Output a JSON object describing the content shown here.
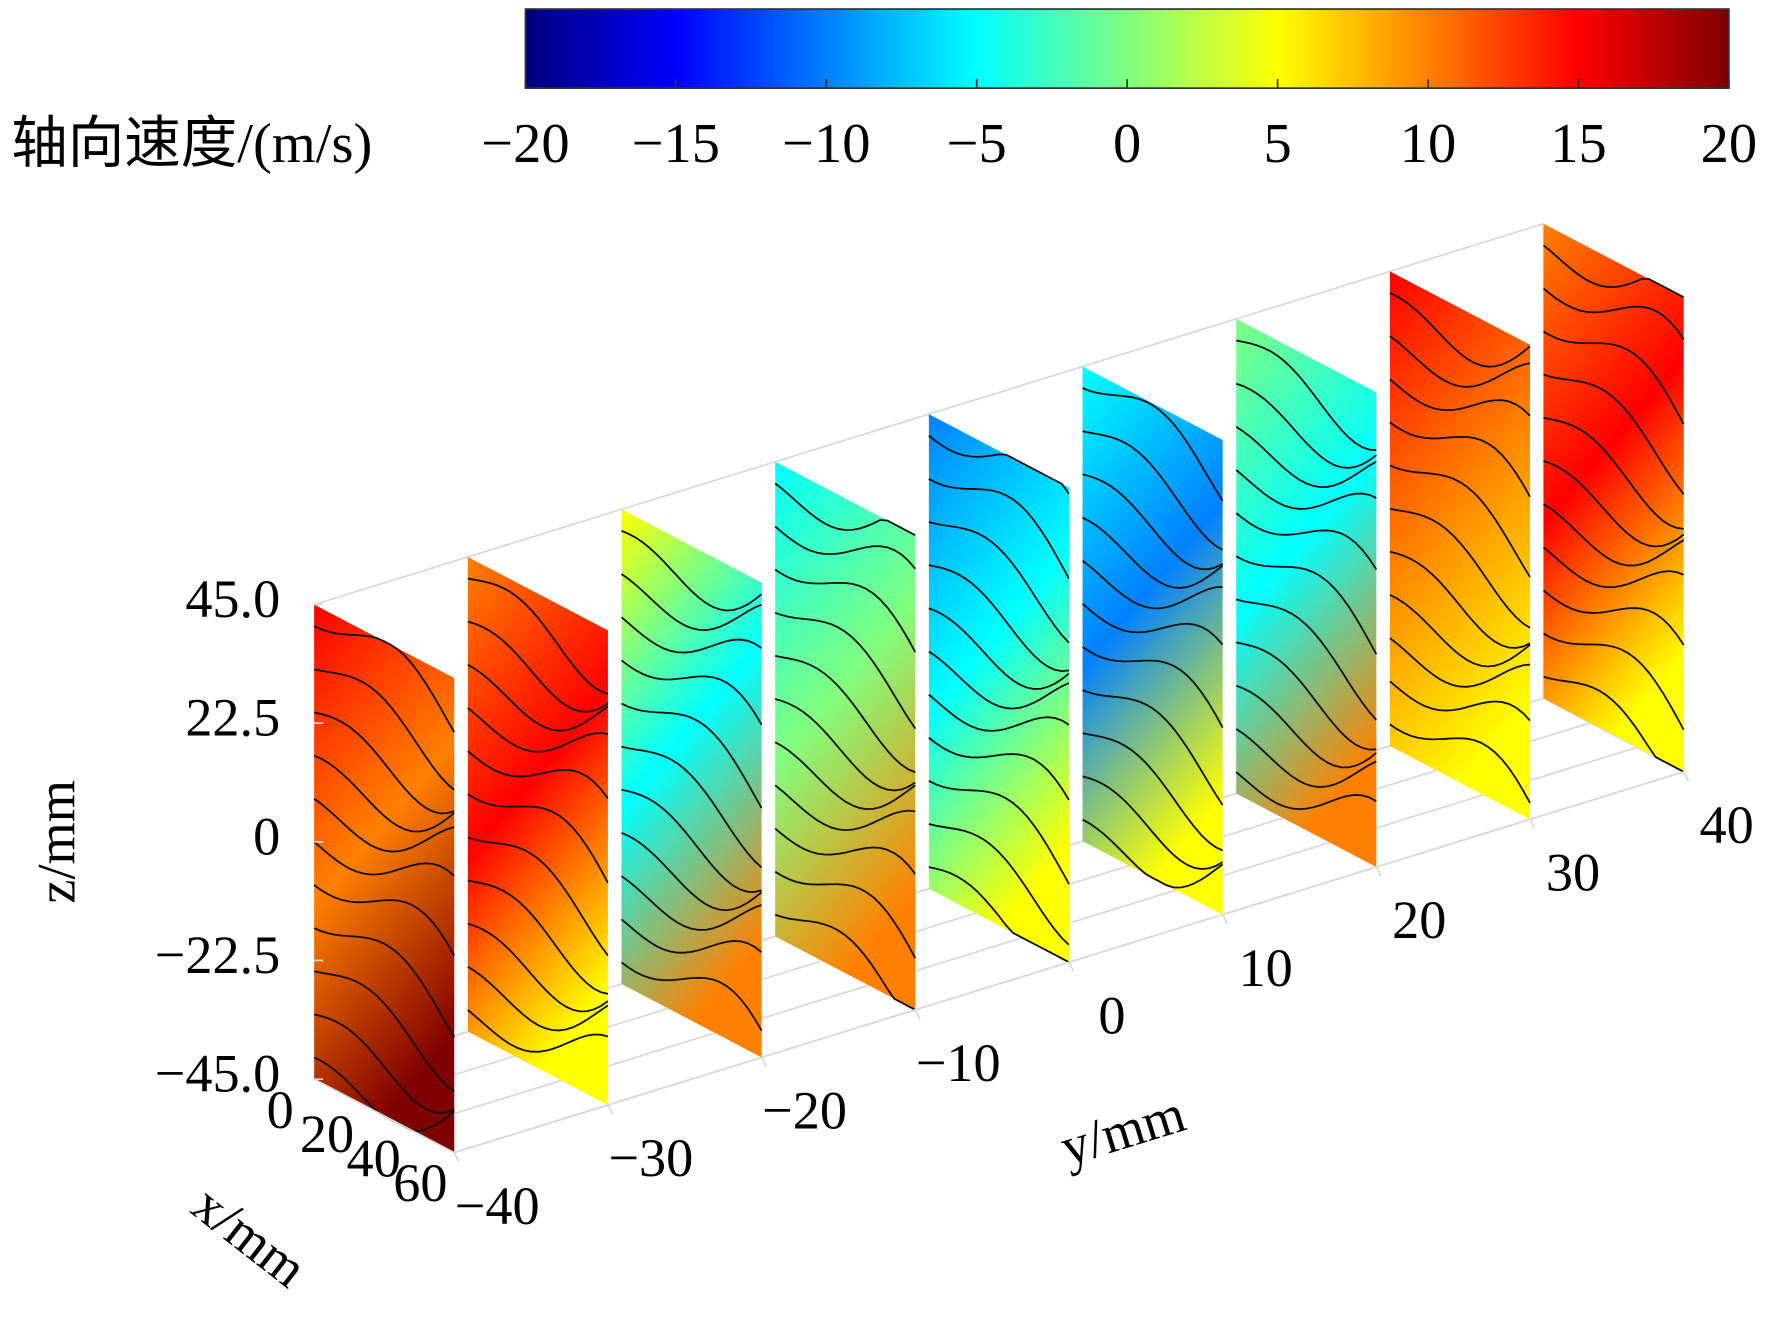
{
  "chart_data": {
    "type": "slice3d",
    "colorbar_label": "轴向速度/(m/s)",
    "clim": [
      -20,
      20
    ],
    "colorbar_ticks": [
      {
        "value": -20,
        "label": "−20"
      },
      {
        "value": -15,
        "label": "−15"
      },
      {
        "value": -10,
        "label": "−10"
      },
      {
        "value": -5,
        "label": "−5"
      },
      0,
      5,
      10,
      15,
      20
    ],
    "colormap": [
      "#00007f",
      "#0000ff",
      "#0080ff",
      "#00ffff",
      "#80ff80",
      "#ffff00",
      "#ff8000",
      "#ff0000",
      "#7f0000"
    ],
    "xlabel": "x/mm",
    "ylabel": "y/mm",
    "zlabel": "z/mm",
    "xlim": [
      0,
      60
    ],
    "xticks": [
      0,
      20,
      40,
      60
    ],
    "ylim": [
      -40,
      40
    ],
    "yticks": [
      {
        "value": -40,
        "label": "−40"
      },
      {
        "value": -30,
        "label": "−30"
      },
      {
        "value": -20,
        "label": "−20"
      },
      {
        "value": -10,
        "label": "−10"
      },
      0,
      10,
      20,
      30,
      40
    ],
    "zlim": [
      -45,
      45
    ],
    "zticks": [
      {
        "value": 45,
        "label": "45.0"
      },
      {
        "value": 22.5,
        "label": "22.5"
      },
      0,
      {
        "value": -22.5,
        "label": "−22.5"
      },
      {
        "value": -45,
        "label": "−45.0"
      }
    ]
  }
}
